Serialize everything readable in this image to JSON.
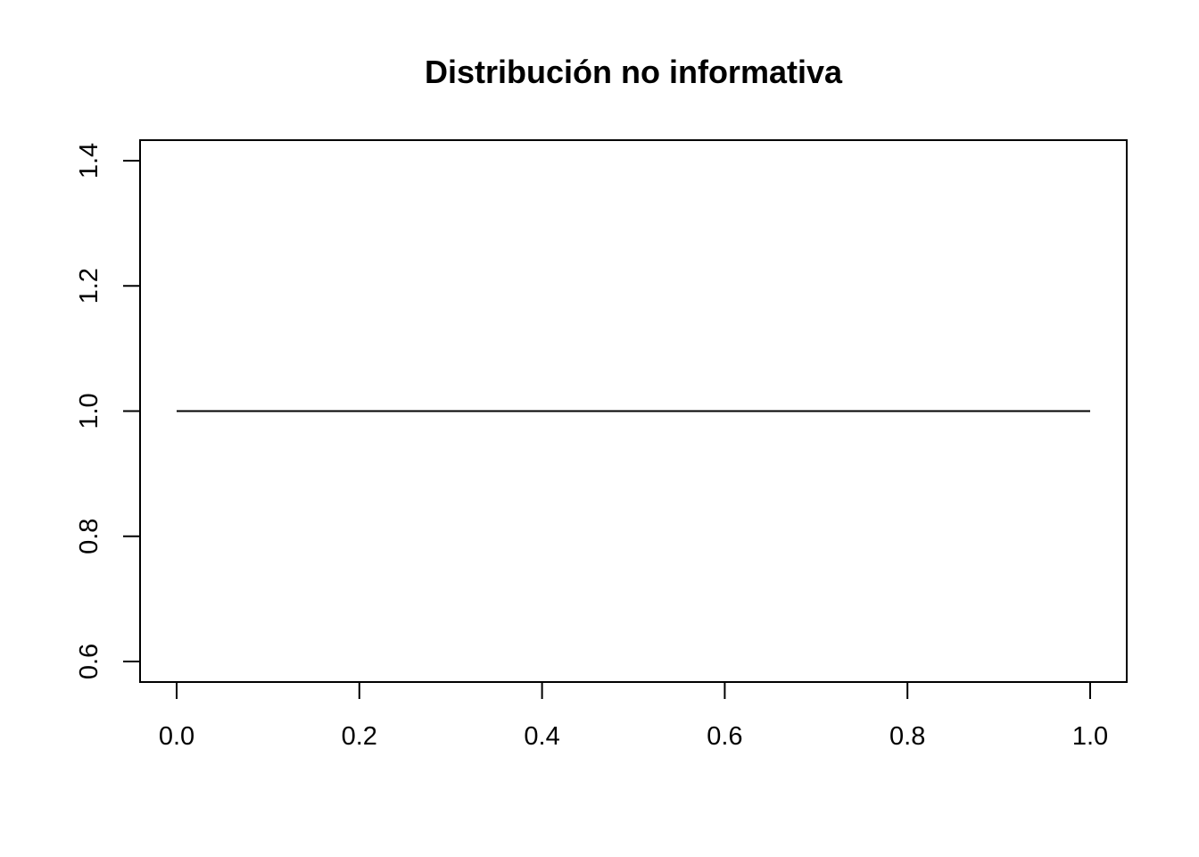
{
  "chart_data": {
    "type": "line",
    "title": "Distribución no informativa",
    "xlabel": "",
    "ylabel": "",
    "xlim": [
      0.0,
      1.0
    ],
    "ylim": [
      0.6,
      1.4
    ],
    "x_ticks": [
      "0.0",
      "0.2",
      "0.4",
      "0.6",
      "0.8",
      "1.0"
    ],
    "y_ticks": [
      "0.6",
      "0.8",
      "1.0",
      "1.2",
      "1.4"
    ],
    "grid": false,
    "series": [
      {
        "x": [
          0.0,
          1.0
        ],
        "y": [
          1.0,
          1.0
        ],
        "color": "#000000"
      }
    ]
  }
}
